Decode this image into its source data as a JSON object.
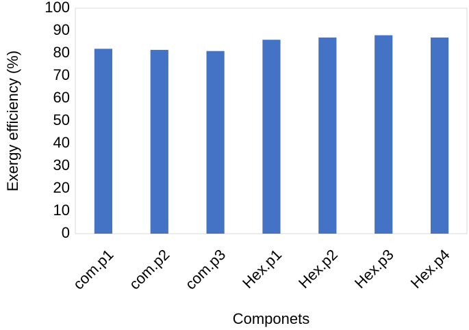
{
  "chart_data": {
    "type": "bar",
    "x_label": "Componets",
    "y_label": "Exergy efficiency (%)",
    "categories": [
      "com.p1",
      "com.p2",
      "com.p3",
      "Hex.p1",
      "Hex.p2",
      "Hex.p3",
      "Hex.p4"
    ],
    "values": [
      82,
      81.5,
      81,
      86,
      87,
      88,
      87
    ],
    "color": "#4472c4",
    "ylim": [
      0,
      100
    ],
    "yticks": [
      0,
      10,
      20,
      30,
      40,
      50,
      60,
      70,
      80,
      90,
      100
    ],
    "grid": false
  }
}
